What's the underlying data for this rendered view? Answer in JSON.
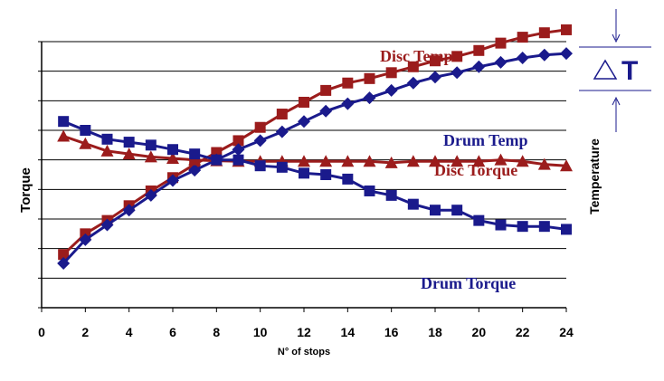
{
  "chart_data": {
    "type": "line",
    "xlabel": "N° of stops",
    "ylabel_left": "Torque",
    "ylabel_right": "Temperature",
    "xlim": [
      0,
      24
    ],
    "x_ticks": [
      "0",
      "2",
      "4",
      "6",
      "8",
      "10",
      "12",
      "14",
      "16",
      "18",
      "20",
      "22",
      "24"
    ],
    "grid": "horizontal",
    "x": [
      1,
      2,
      3,
      4,
      5,
      6,
      7,
      8,
      9,
      10,
      11,
      12,
      13,
      14,
      15,
      16,
      17,
      18,
      19,
      20,
      21,
      22,
      23,
      24
    ],
    "series": [
      {
        "name": "Disc Temp",
        "color": "#9b1c1c",
        "marker": "square",
        "values": [
          1.8,
          2.5,
          2.95,
          3.45,
          3.95,
          4.4,
          4.85,
          5.25,
          5.65,
          6.1,
          6.55,
          6.95,
          7.35,
          7.6,
          7.75,
          7.95,
          8.15,
          8.35,
          8.5,
          8.7,
          8.95,
          9.15,
          9.3,
          9.4
        ]
      },
      {
        "name": "Drum Temp",
        "color": "#1a1a8c",
        "marker": "diamond",
        "values": [
          1.5,
          2.3,
          2.8,
          3.3,
          3.8,
          4.3,
          4.65,
          5.0,
          5.35,
          5.65,
          5.95,
          6.3,
          6.65,
          6.9,
          7.1,
          7.35,
          7.6,
          7.8,
          7.95,
          8.15,
          8.3,
          8.45,
          8.55,
          8.6
        ]
      },
      {
        "name": "Disc Torque",
        "color": "#9b1c1c",
        "marker": "triangle",
        "values": [
          5.8,
          5.55,
          5.3,
          5.2,
          5.1,
          5.05,
          5.0,
          4.97,
          4.95,
          4.95,
          4.95,
          4.95,
          4.95,
          4.95,
          4.95,
          4.9,
          4.95,
          4.95,
          4.95,
          4.95,
          5.0,
          4.95,
          4.85,
          4.8
        ]
      },
      {
        "name": "Drum Torque",
        "color": "#1a1a8c",
        "marker": "square",
        "values": [
          6.3,
          6.0,
          5.7,
          5.6,
          5.5,
          5.35,
          5.2,
          5.0,
          5.0,
          4.8,
          4.75,
          4.55,
          4.5,
          4.35,
          3.95,
          3.8,
          3.5,
          3.3,
          3.3,
          2.95,
          2.8,
          2.75,
          2.75,
          2.65
        ]
      }
    ],
    "series_labels": {
      "disc_temp": "Disc Temp",
      "drum_temp": "Drum Temp",
      "disc_torque": "Disc Torque",
      "drum_torque": "Drum Torque"
    },
    "delta_label": "T",
    "delta_icon": "delta-triangle-icon",
    "arrow_icons": [
      "arrow-down-icon",
      "arrow-up-icon"
    ],
    "colors": {
      "red": "#9b1c1c",
      "blue": "#1a1a8c"
    }
  }
}
